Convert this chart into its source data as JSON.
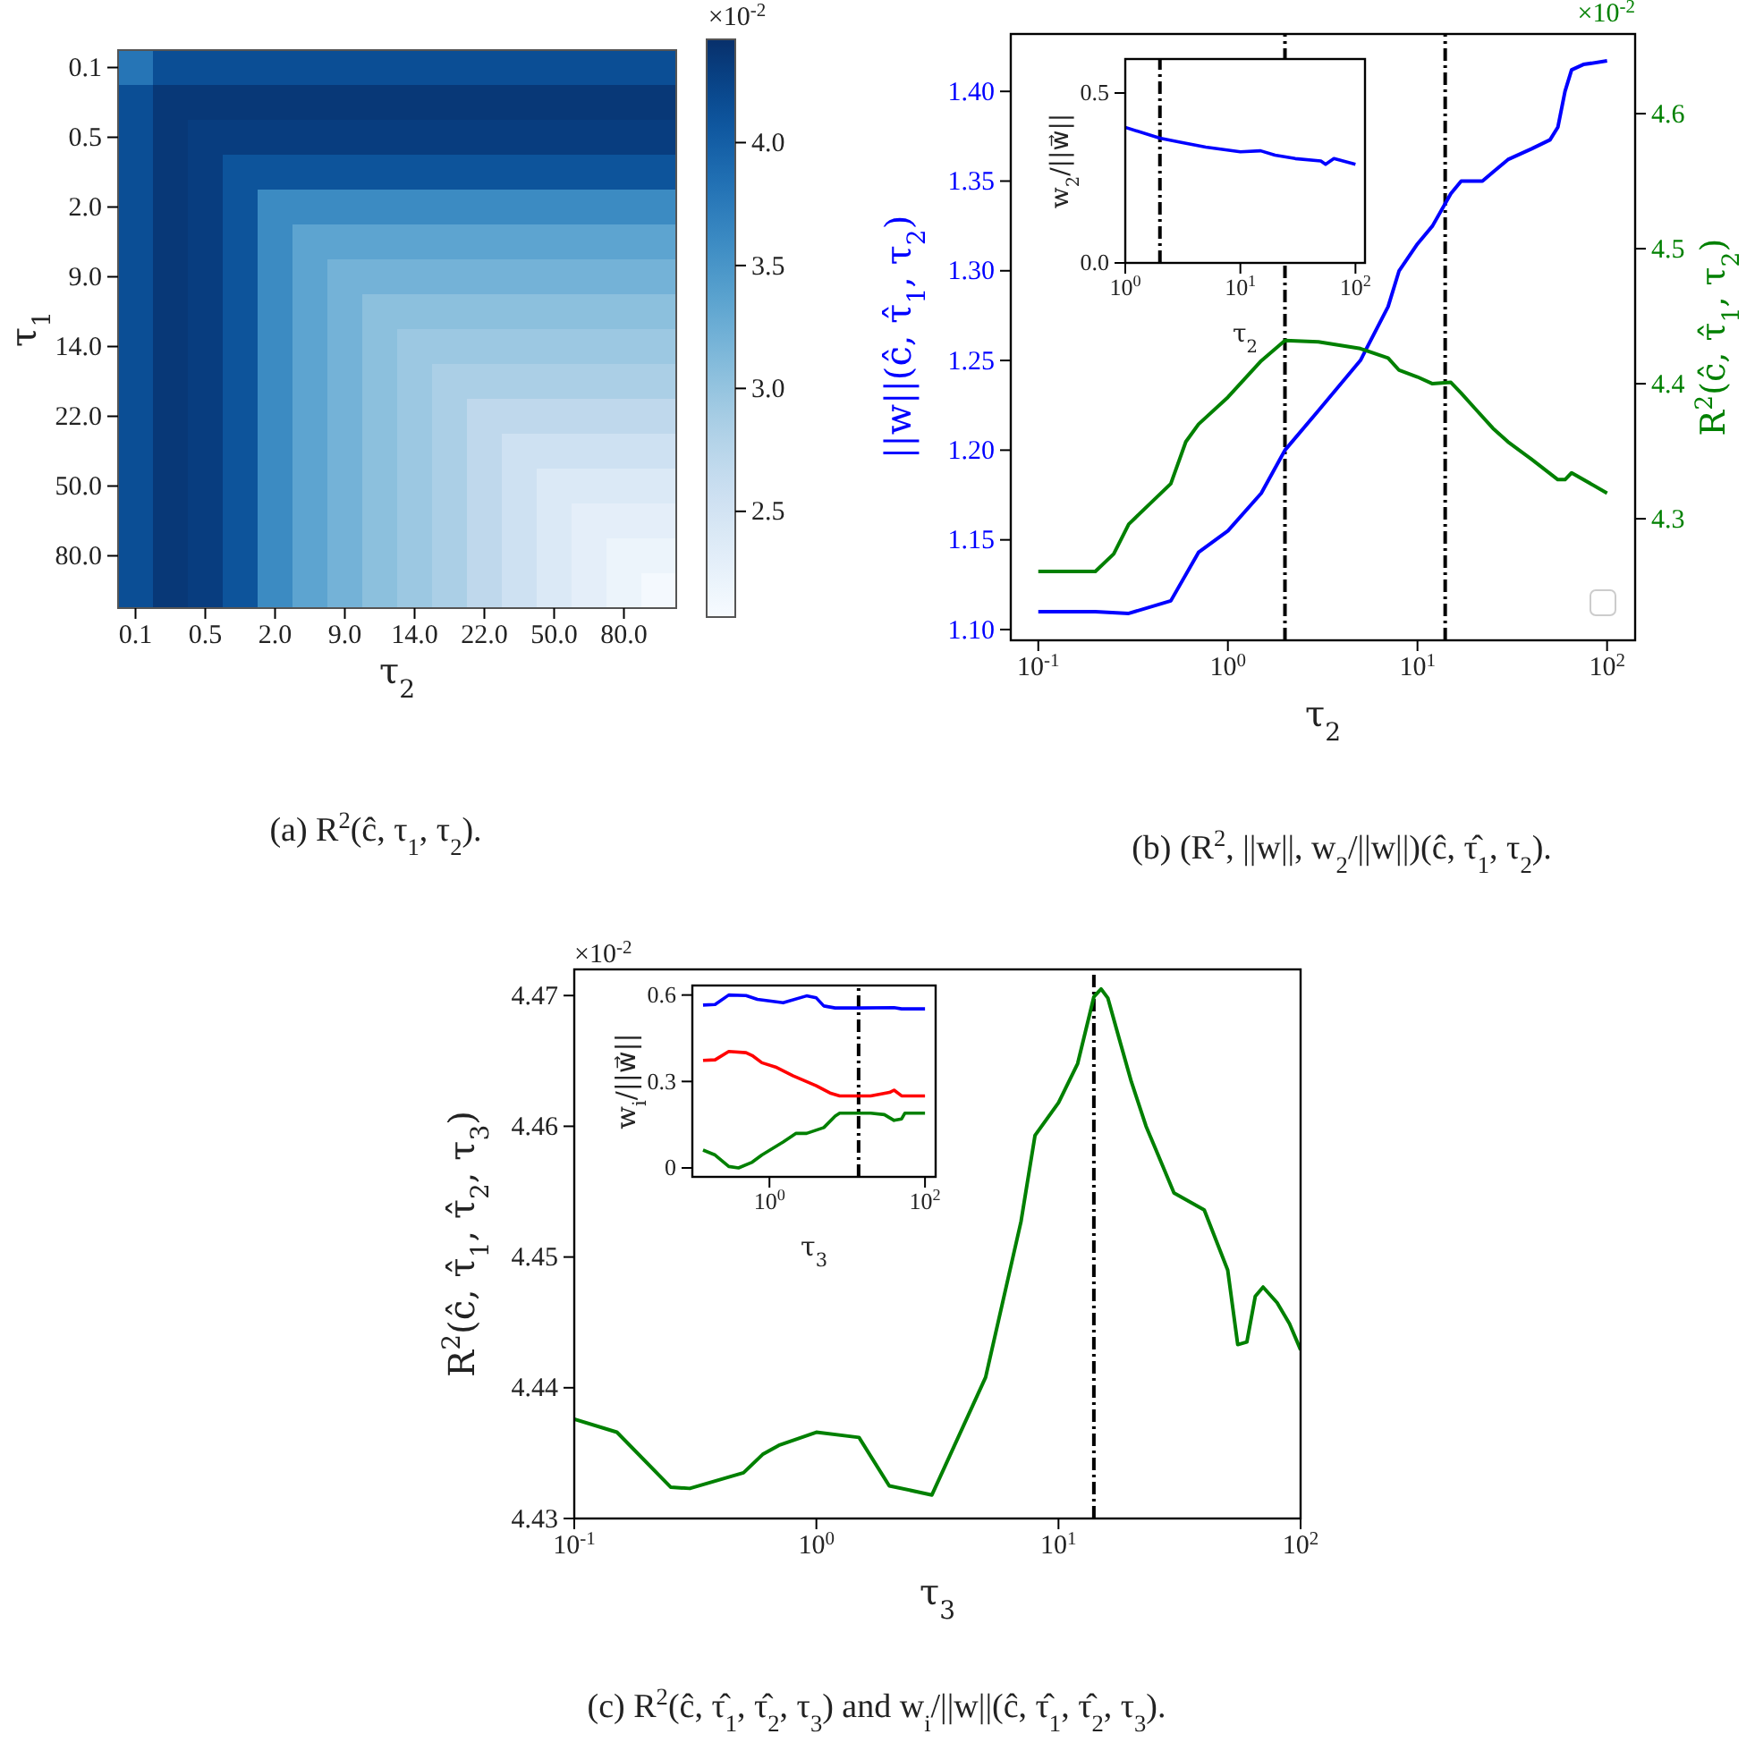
{
  "chart_data": [
    {
      "type": "heatmap",
      "xlabel": "τ$_{2}$",
      "ylabel": "τ$_{1}$",
      "categories": [
        "0.1",
        null,
        "0.5",
        null,
        "2.0",
        null,
        "9.0",
        null,
        "14.0",
        null,
        "22.0",
        null,
        "50.0",
        null,
        "80.0",
        null
      ],
      "y_categories": [
        "0.1",
        null,
        "0.5",
        null,
        "2.0",
        null,
        "9.0",
        null,
        "14.0",
        null,
        "22.0",
        null,
        "50.0",
        null,
        "80.0",
        null
      ],
      "cells": [
        [
          3.8,
          4.15,
          4.15,
          4.15,
          4.15,
          4.15,
          4.15,
          4.15,
          4.15,
          4.15,
          4.15,
          4.15,
          4.15,
          4.15,
          4.15,
          4.15
        ],
        [
          4.15,
          4.35,
          4.35,
          4.35,
          4.35,
          4.35,
          4.35,
          4.35,
          4.35,
          4.35,
          4.35,
          4.35,
          4.35,
          4.35,
          4.35,
          4.35
        ],
        [
          4.15,
          4.35,
          4.3,
          4.3,
          4.3,
          4.3,
          4.3,
          4.3,
          4.3,
          4.3,
          4.3,
          4.3,
          4.3,
          4.3,
          4.3,
          4.3
        ],
        [
          4.15,
          4.35,
          4.3,
          4.1,
          4.1,
          4.1,
          4.1,
          4.1,
          4.1,
          4.1,
          4.1,
          4.1,
          4.1,
          4.1,
          4.1,
          4.1
        ],
        [
          4.15,
          4.35,
          4.3,
          4.1,
          3.6,
          3.6,
          3.6,
          3.6,
          3.6,
          3.6,
          3.6,
          3.6,
          3.6,
          3.6,
          3.6,
          3.6
        ],
        [
          4.15,
          4.35,
          4.3,
          4.1,
          3.6,
          3.35,
          3.35,
          3.35,
          3.35,
          3.35,
          3.35,
          3.35,
          3.35,
          3.35,
          3.35,
          3.35
        ],
        [
          4.15,
          4.35,
          4.3,
          4.1,
          3.6,
          3.35,
          3.2,
          3.2,
          3.2,
          3.2,
          3.2,
          3.2,
          3.2,
          3.2,
          3.2,
          3.2
        ],
        [
          4.15,
          4.35,
          4.3,
          4.1,
          3.6,
          3.35,
          3.2,
          3.05,
          3.05,
          3.05,
          3.05,
          3.05,
          3.05,
          3.05,
          3.05,
          3.05
        ],
        [
          4.15,
          4.35,
          4.3,
          4.1,
          3.6,
          3.35,
          3.2,
          3.05,
          2.95,
          2.95,
          2.95,
          2.95,
          2.95,
          2.95,
          2.95,
          2.95
        ],
        [
          4.15,
          4.35,
          4.3,
          4.1,
          3.6,
          3.35,
          3.2,
          3.05,
          2.95,
          2.85,
          2.85,
          2.85,
          2.85,
          2.85,
          2.85,
          2.85
        ],
        [
          4.15,
          4.35,
          4.3,
          4.1,
          3.6,
          3.35,
          3.2,
          3.05,
          2.95,
          2.85,
          2.7,
          2.7,
          2.7,
          2.7,
          2.7,
          2.7
        ],
        [
          4.15,
          4.35,
          4.3,
          4.1,
          3.6,
          3.35,
          3.2,
          3.05,
          2.95,
          2.85,
          2.7,
          2.55,
          2.55,
          2.55,
          2.55,
          2.55
        ],
        [
          4.15,
          4.35,
          4.3,
          4.1,
          3.6,
          3.35,
          3.2,
          3.05,
          2.95,
          2.85,
          2.7,
          2.55,
          2.4,
          2.4,
          2.4,
          2.4
        ],
        [
          4.15,
          4.35,
          4.3,
          4.1,
          3.6,
          3.35,
          3.2,
          3.05,
          2.95,
          2.85,
          2.7,
          2.55,
          2.4,
          2.3,
          2.3,
          2.3
        ],
        [
          4.15,
          4.35,
          4.3,
          4.1,
          3.6,
          3.35,
          3.2,
          3.05,
          2.95,
          2.85,
          2.7,
          2.55,
          2.4,
          2.3,
          2.2,
          2.2
        ],
        [
          4.15,
          4.35,
          4.3,
          4.1,
          3.6,
          3.35,
          3.2,
          3.05,
          2.95,
          2.85,
          2.7,
          2.55,
          2.4,
          2.3,
          2.2,
          2.1
        ]
      ],
      "clim": [
        2.07,
        4.42
      ],
      "cticks": [
        2.5,
        {
          "value": 3,
          "label": "3.0"
        },
        3.5,
        {
          "value": 4,
          "label": "4.0"
        }
      ],
      "annotations": [
        "×10$^{-2}$",
        "(a) R$^{2}$(ĉ, τ$_{1}$, τ$_{2}$)."
      ]
    },
    {
      "type": "line",
      "log": "x",
      "xlabel": "τ$_{2}$",
      "ylabel": "||w||(ĉ, τ̂$_{1}$, τ$_{2}$)",
      "y2label": "R$^{2}$(ĉ, τ̂$_{1}$, τ$_{2}$)",
      "xlim": [
        0.0716,
        140.6
      ],
      "ylim": [
        1.094,
        1.432
      ],
      "y2lim": [
        4.21,
        4.659
      ],
      "xticks": [
        {
          "value": 0.1,
          "label": "10$^{-1}$"
        },
        {
          "value": 1,
          "label": "10$^{0}$"
        },
        {
          "value": 10,
          "label": "10$^{1}$"
        },
        {
          "value": 100,
          "label": "10$^{2}$"
        }
      ],
      "yticks": [
        {
          "value": 1.1,
          "label": "1.10"
        },
        1.15,
        {
          "value": 1.2,
          "label": "1.20"
        },
        1.25,
        {
          "value": 1.3,
          "label": "1.30"
        },
        1.35,
        {
          "value": 1.4,
          "label": "1.40"
        }
      ],
      "y2ticks": [
        {
          "value": 4.3,
          "label": "4.3"
        },
        4.4,
        4.5,
        4.6
      ],
      "series": [
        {
          "color": "#0000ff",
          "x": [
            0.1,
            0.2,
            0.3,
            0.5,
            0.7,
            1,
            1.5,
            2,
            3,
            5,
            7,
            8,
            10,
            12,
            15,
            17,
            22,
            25,
            30,
            40,
            50,
            55,
            60,
            65,
            75,
            100
          ],
          "values": [
            1.11,
            1.11,
            1.109,
            1.116,
            1.143,
            1.155,
            1.176,
            1.2,
            1.222,
            1.25,
            1.28,
            1.3,
            1.315,
            1.325,
            1.343,
            1.35,
            1.35,
            1.355,
            1.362,
            1.368,
            1.373,
            1.38,
            1.4,
            1.412,
            1.415,
            1.417
          ]
        },
        {
          "color": "#008000",
          "axis": "y2",
          "x": [
            0.1,
            0.2,
            0.25,
            0.3,
            0.5,
            0.6,
            0.7,
            1,
            1.5,
            2,
            3,
            5,
            7,
            8,
            10,
            12,
            15,
            17,
            20,
            25,
            30,
            40,
            55,
            60,
            65,
            100
          ],
          "values": [
            4.261,
            4.261,
            4.274,
            4.296,
            4.326,
            4.357,
            4.37,
            4.39,
            4.417,
            4.432,
            4.431,
            4.426,
            4.419,
            4.41,
            4.405,
            4.4,
            4.401,
            4.393,
            4.382,
            4.367,
            4.357,
            4.344,
            4.329,
            4.329,
            4.334,
            4.319
          ]
        }
      ],
      "ref_lines": [
        {
          "axis": "x",
          "value": 2,
          "color": "#000000",
          "line_style": "dashdot"
        },
        {
          "axis": "x",
          "value": 14,
          "color": "#000000",
          "line_style": "dashdot"
        }
      ],
      "annotations": [
        "×10$^{-2}$",
        "(b) (R$^{2}$, ||w||, w$_{2}$/||w||)(ĉ, τ̂$_{1}$, τ$_{2}$)."
      ]
    },
    {
      "type": "line",
      "log": "x",
      "xlabel": "τ$_{2}$",
      "ylabel": "w$_{2}$/||w⃗||",
      "xlim": [
        1,
        121
      ],
      "ylim": [
        0,
        0.6
      ],
      "xticks": [
        {
          "value": 1,
          "label": "10$^{0}$"
        },
        {
          "value": 10,
          "label": "10$^{1}$"
        },
        {
          "value": 100,
          "label": "10$^{2}$"
        }
      ],
      "yticks": [
        {
          "value": 0,
          "label": "0.0"
        },
        0.5
      ],
      "series": [
        {
          "color": "#0000ff",
          "x": [
            1,
            2,
            3,
            5,
            10,
            15,
            20,
            30,
            50,
            55,
            65,
            100
          ],
          "values": [
            0.399,
            0.367,
            0.355,
            0.341,
            0.327,
            0.33,
            0.317,
            0.307,
            0.3,
            0.29,
            0.307,
            0.29
          ]
        }
      ],
      "ref_lines": [
        {
          "axis": "x",
          "value": 2,
          "color": "#000000",
          "line_style": "dashdot"
        }
      ]
    },
    {
      "type": "line",
      "log": "x",
      "xlabel": "τ$_{3}$",
      "ylabel": "R$^{2}$(ĉ, τ̂$_{1}$, τ̂$_{2}$, τ$_{3}$)",
      "xlim": [
        0.1,
        100
      ],
      "ylim": [
        4.43,
        4.472
      ],
      "xticks": [
        {
          "value": 0.1,
          "label": "10$^{-1}$"
        },
        {
          "value": 1,
          "label": "10$^{0}$"
        },
        {
          "value": 10,
          "label": "10$^{1}$"
        },
        {
          "value": 100,
          "label": "10$^{2}$"
        }
      ],
      "yticks": [
        4.43,
        4.44,
        4.45,
        4.46,
        4.47
      ],
      "series": [
        {
          "color": "#008000",
          "x": [
            0.1,
            0.15,
            0.25,
            0.3,
            0.5,
            0.6,
            0.7,
            1,
            1.5,
            2,
            3,
            5,
            7,
            8,
            10,
            12,
            14,
            15,
            16,
            18,
            20,
            23,
            25,
            30,
            40,
            50,
            55,
            60,
            65,
            70,
            80,
            90,
            100
          ],
          "values": [
            4.4376,
            4.4366,
            4.4324,
            4.4323,
            4.4335,
            4.4349,
            4.4356,
            4.4366,
            4.4362,
            4.4325,
            4.4318,
            4.4408,
            4.4527,
            4.4593,
            4.4618,
            4.4648,
            4.4699,
            4.4705,
            4.4698,
            4.4664,
            4.4634,
            4.46,
            4.4584,
            4.4549,
            4.4536,
            4.449,
            4.4433,
            4.4435,
            4.447,
            4.4477,
            4.4465,
            4.4449,
            4.4429
          ]
        }
      ],
      "ref_lines": [
        {
          "axis": "x",
          "value": 14,
          "color": "#000000",
          "line_style": "dashdot"
        }
      ],
      "annotations": [
        "×10$^{-2}$",
        "(c) R$^{2}$(ĉ, τ̂$_{1}$, τ̂$_{2}$, τ$_{3}$) and w$_{i}$/||w||(ĉ, τ̂$_{1}$, τ̂$_{2}$, τ$_{3}$)."
      ]
    },
    {
      "type": "line",
      "log": "x",
      "xlabel": "τ$_{3}$",
      "ylabel": "w$_{i}$/||w⃗||",
      "xlim": [
        0.102,
        137
      ],
      "ylim": [
        -0.031,
        0.633
      ],
      "xticks": [
        {
          "value": 1,
          "label": "10$^{0}$"
        },
        {
          "value": 100,
          "label": "10$^{2}$"
        }
      ],
      "yticks": [
        0,
        0.3,
        0.6
      ],
      "series": [
        {
          "color": "#0000ff",
          "x": [
            0.14,
            0.2,
            0.3,
            0.5,
            0.7,
            1.5,
            3,
            4,
            5,
            7,
            14,
            40,
            50,
            100
          ],
          "values": [
            0.565,
            0.567,
            0.6,
            0.598,
            0.585,
            0.573,
            0.597,
            0.59,
            0.562,
            0.555,
            0.555,
            0.556,
            0.552,
            0.552
          ]
        },
        {
          "color": "#ff0000",
          "x": [
            0.14,
            0.2,
            0.3,
            0.5,
            0.6,
            0.8,
            1.2,
            2,
            4,
            6,
            8,
            20,
            35,
            40,
            50,
            100
          ],
          "values": [
            0.373,
            0.375,
            0.404,
            0.4,
            0.39,
            0.365,
            0.35,
            0.32,
            0.285,
            0.26,
            0.25,
            0.25,
            0.262,
            0.27,
            0.25,
            0.25
          ]
        },
        {
          "color": "#008000",
          "x": [
            0.14,
            0.2,
            0.3,
            0.4,
            0.6,
            0.8,
            1.5,
            2.2,
            3,
            5,
            7,
            8,
            20,
            30,
            40,
            50,
            55,
            100
          ],
          "values": [
            0.062,
            0.045,
            0.005,
            0,
            0.02,
            0.045,
            0.09,
            0.12,
            0.12,
            0.14,
            0.18,
            0.19,
            0.19,
            0.185,
            0.165,
            0.17,
            0.19,
            0.19
          ]
        }
      ],
      "ref_lines": [
        {
          "axis": "x",
          "value": 14,
          "color": "#000000",
          "line_style": "dashdot"
        }
      ]
    }
  ]
}
